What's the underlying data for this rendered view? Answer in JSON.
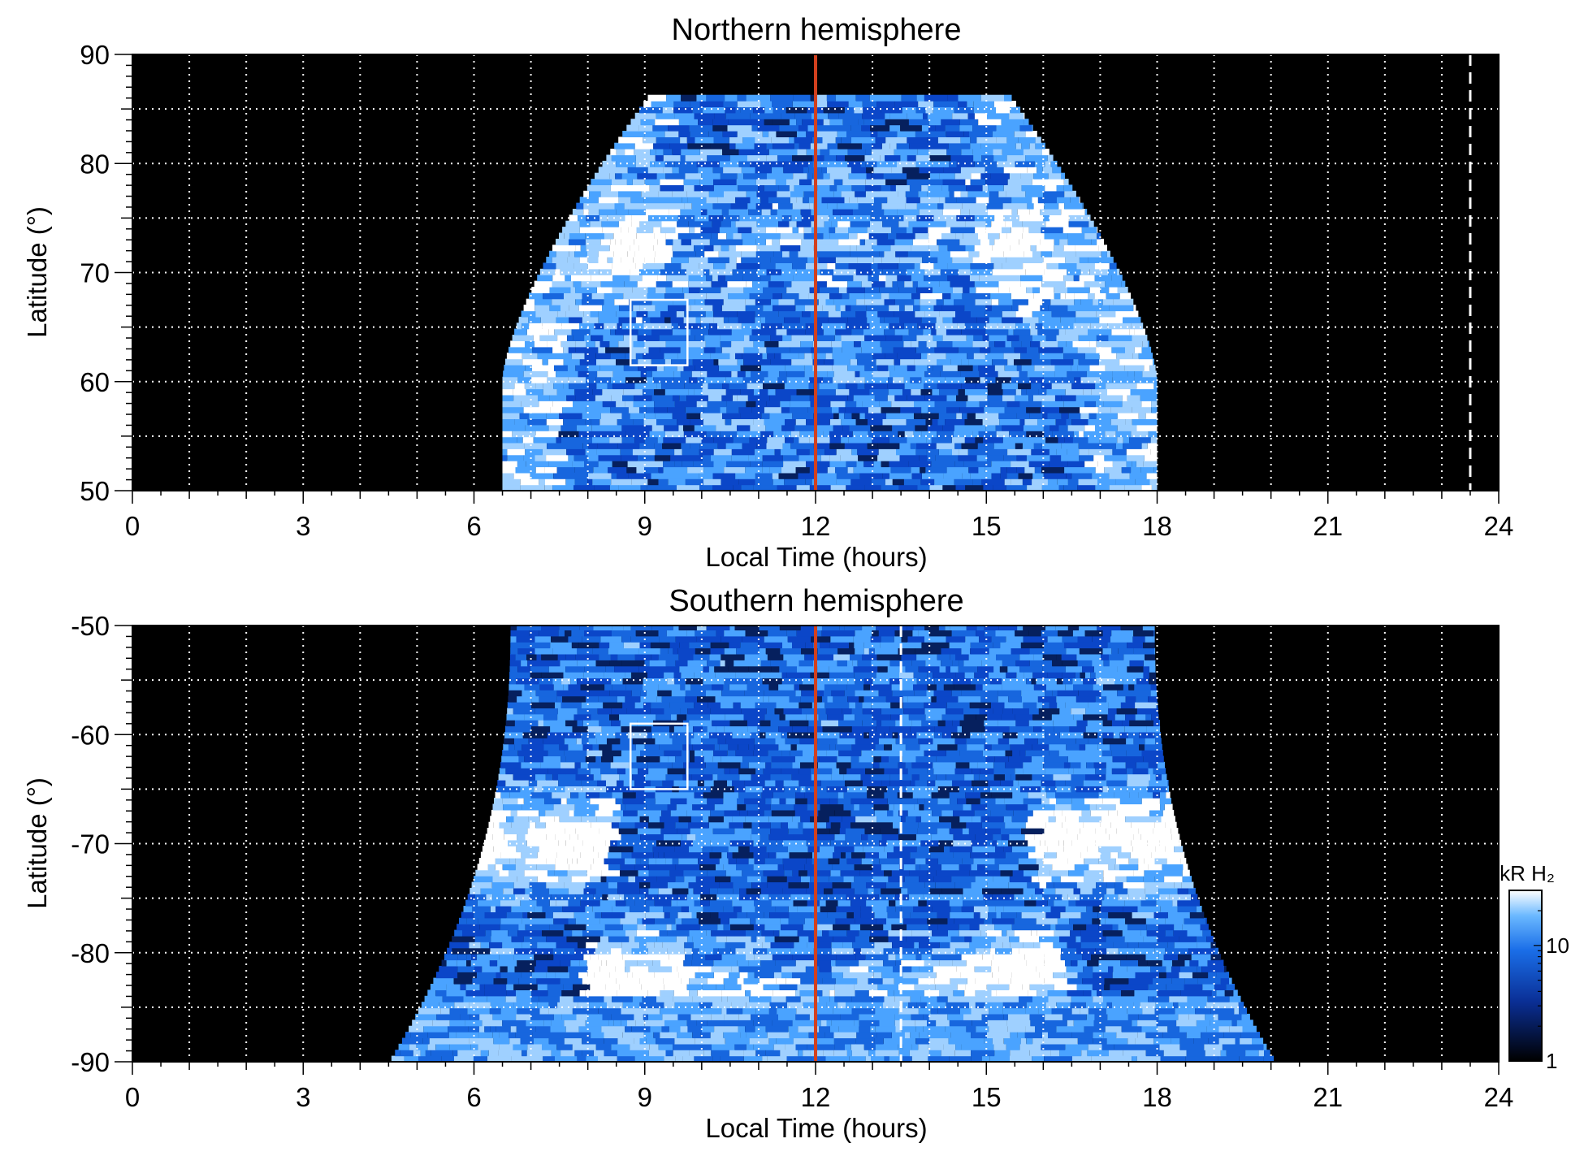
{
  "colors": {
    "background": "#000000",
    "map_low": "#000000",
    "map_mid": "#0b46c8",
    "map_bright": "#4aa3ff",
    "map_high": "#ffffff",
    "grid": "#ffffff",
    "noon_line": "#d2401e",
    "box": "#ffffff"
  },
  "chart_data": [
    {
      "type": "heatmap",
      "title": "Northern hemisphere",
      "xlabel": "Local Time (hours)",
      "ylabel": "Latitude (°)",
      "xlim": [
        0,
        24
      ],
      "ylim": [
        50,
        90
      ],
      "x_ticks": [
        "0",
        "3",
        "6",
        "9",
        "12",
        "15",
        "18",
        "21",
        "24"
      ],
      "y_ticks": [
        "50",
        "60",
        "70",
        "80",
        "90"
      ],
      "grid": true,
      "coverage_lt_range": [
        6.5,
        18.0
      ],
      "polar_limit_lat": 86,
      "reference_lines": [
        {
          "lt": 12.0,
          "style": "solid",
          "color": "#d2401e"
        },
        {
          "lt": 23.5,
          "style": "dashed",
          "color": "#ffffff"
        }
      ],
      "box": {
        "lt": [
          8.75,
          9.75
        ],
        "lat": [
          61.5,
          67.5
        ]
      }
    },
    {
      "type": "heatmap",
      "title": "Southern hemisphere",
      "xlabel": "Local Time (hours)",
      "ylabel": "Latitude (°)",
      "xlim": [
        0,
        24
      ],
      "ylim": [
        -90,
        -50
      ],
      "x_ticks": [
        "0",
        "3",
        "6",
        "9",
        "12",
        "15",
        "18",
        "21",
        "24"
      ],
      "y_ticks": [
        "-50",
        "-60",
        "-70",
        "-80",
        "-90"
      ],
      "grid": true,
      "coverage_lt_range": [
        4.5,
        20.0
      ],
      "polar_limit_lat": -90,
      "reference_lines": [
        {
          "lt": 12.0,
          "style": "solid",
          "color": "#d2401e"
        },
        {
          "lt": 13.5,
          "style": "dashed",
          "color": "#ffffff"
        }
      ],
      "box": {
        "lt": [
          8.75,
          9.75
        ],
        "lat": [
          -59,
          -65
        ]
      }
    }
  ],
  "colorbar": {
    "label": "kR H₂",
    "scale": "log",
    "range": [
      1,
      30
    ],
    "ticks": [
      "1",
      "10"
    ]
  }
}
